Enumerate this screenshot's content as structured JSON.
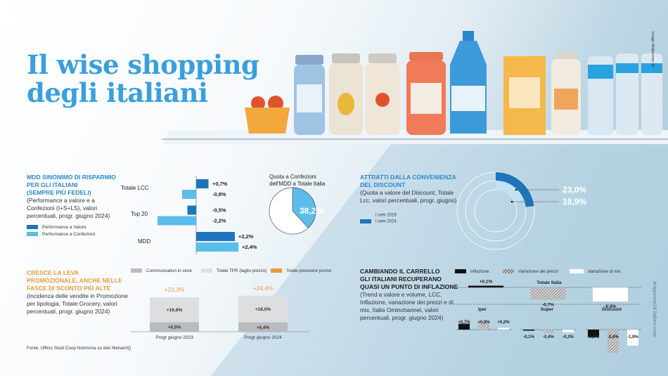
{
  "title_line1": "Il wise shopping",
  "title_line2": "degli italiani",
  "image_credit": "Image Midjourney IA",
  "side_tag": "#rappcoop24 italiani.coop",
  "source": "Fonte: Ufficio Studi Coop-Nomisma su dati NielsenIQ",
  "colors": {
    "title": "#3a9fdc",
    "dark_blue": "#1f74bb",
    "light_blue": "#5bbdea",
    "orange": "#e89a3c",
    "grey_dark": "#b9bcbf",
    "grey_light": "#dcdee0"
  },
  "chart_data": [
    {
      "type": "bar",
      "orientation": "horizontal",
      "heading": "MDD SINONIMO DI RISPARMIO PER GLI ITALIANI (SEMPRE PIÙ FEDELI)",
      "heading_lines": [
        "MDD SINONIMO DI RISPARMIO",
        "PER GLI ITALIANI",
        "(SEMPRE PIÙ FEDELI)"
      ],
      "subtitle": "(Performance a valore e a Confezioni (I+S+LS), valori percentuali, progr. giugno 2024)",
      "categories": [
        "Totale LCC",
        "Top 20",
        "MDD"
      ],
      "series": [
        {
          "name": "Performance a Valore",
          "color": "#1f74bb",
          "values": [
            0.7,
            -0.5,
            2.2
          ],
          "labels": [
            "+0,7%",
            "-0,5%",
            "+2,2%"
          ]
        },
        {
          "name": "Performance a Confezioni",
          "color": "#5bbdea",
          "values": [
            -0.8,
            -2.2,
            2.4
          ],
          "labels": [
            "-0,8%",
            "-2,2%",
            "+2,4%"
          ]
        }
      ]
    },
    {
      "type": "pie",
      "title": "Quota a Confezioni dell'MDD a Totale Italia",
      "title_lines": [
        "Quota a Confezioni",
        "dell'MDD a Totale Italia"
      ],
      "value": 38.2,
      "label": "38,2%",
      "color": "#5bbdea"
    },
    {
      "type": "pie",
      "variant": "donut",
      "heading_lines": [
        "ATTRATTI DALLA CONVENIENZA",
        "DEL DISCOUNT"
      ],
      "subtitle": "(Quota a valore del Discount, Totale Lcc, valori percentuali, progr. giugno)",
      "series": [
        {
          "name": "I sem 2019",
          "value": 18.9,
          "label": "18,9%",
          "color": "#bfe2f5"
        },
        {
          "name": "I sem 2024",
          "value": 23.0,
          "label": "23,0%",
          "color": "#1f74bb"
        }
      ]
    },
    {
      "type": "bar",
      "stacked": true,
      "heading_lines": [
        "CRESCE LA LEVA",
        "PROMOZIONALE, ANCHE NELLE",
        "FASCE DI SCONTO PIÙ ALTE"
      ],
      "subtitle": "(Incidenza delle vendite in Promozione per tipologia, Totale Grocery, valori percentuali, progr. giugno 2024)",
      "categories": [
        "Progr giugno 2023",
        "Progr giugno 2024"
      ],
      "series": [
        {
          "name": "Communication in store",
          "color": "#b9bcbf",
          "values": [
            6.5,
            6.4
          ],
          "labels": [
            "+6,5%",
            "+6,4%"
          ]
        },
        {
          "name": "Totale TPR (taglio prezzo)",
          "color": "#dcdee0",
          "values": [
            16.8,
            18.0
          ],
          "labels": [
            "+16,8%",
            "+18,0%"
          ]
        }
      ],
      "totals": {
        "name": "Totale pressione promo",
        "color": "#e89a3c",
        "values": [
          23.3,
          24.4
        ],
        "labels": [
          "+23,3%",
          "+24,4%"
        ]
      }
    },
    {
      "type": "bar",
      "heading_lines": [
        "CAMBIANDO IL CARRELLO",
        "GLI ITALIANI RECUPERANO",
        "QUASI UN PUNTO DI INFLAZIONE"
      ],
      "subtitle": "(Trend a valore e volume, LCC, Inflazione, variazione dei prezzi e di mix, Italia Ominchannel, valori percentuali, progr. giugno 2024)",
      "legend": [
        "Inflazione",
        "Variazione dei prezzi",
        "Variazione di mix"
      ],
      "panels": [
        {
          "name": "Totale Italia",
          "values": [
            0.1,
            -0.7,
            -0.8
          ],
          "labels": [
            "+0,1%",
            "-0,7%",
            "-0,8%"
          ]
        },
        {
          "name": "Iper",
          "values": [
            0.7,
            0.9,
            0.2
          ],
          "labels": [
            "+0,7%",
            "+0,9%",
            "+0,2%"
          ]
        },
        {
          "name": "Super",
          "values": [
            -0.1,
            -0.4,
            -0.3
          ],
          "labels": [
            "-0,1%",
            "-0,4%",
            "-0,3%"
          ]
        },
        {
          "name": "Discount",
          "values": [
            -0.9,
            -2.8,
            -1.9
          ],
          "labels": [
            "-0,9%",
            "-2,8%",
            "-1,9%"
          ]
        }
      ]
    }
  ]
}
